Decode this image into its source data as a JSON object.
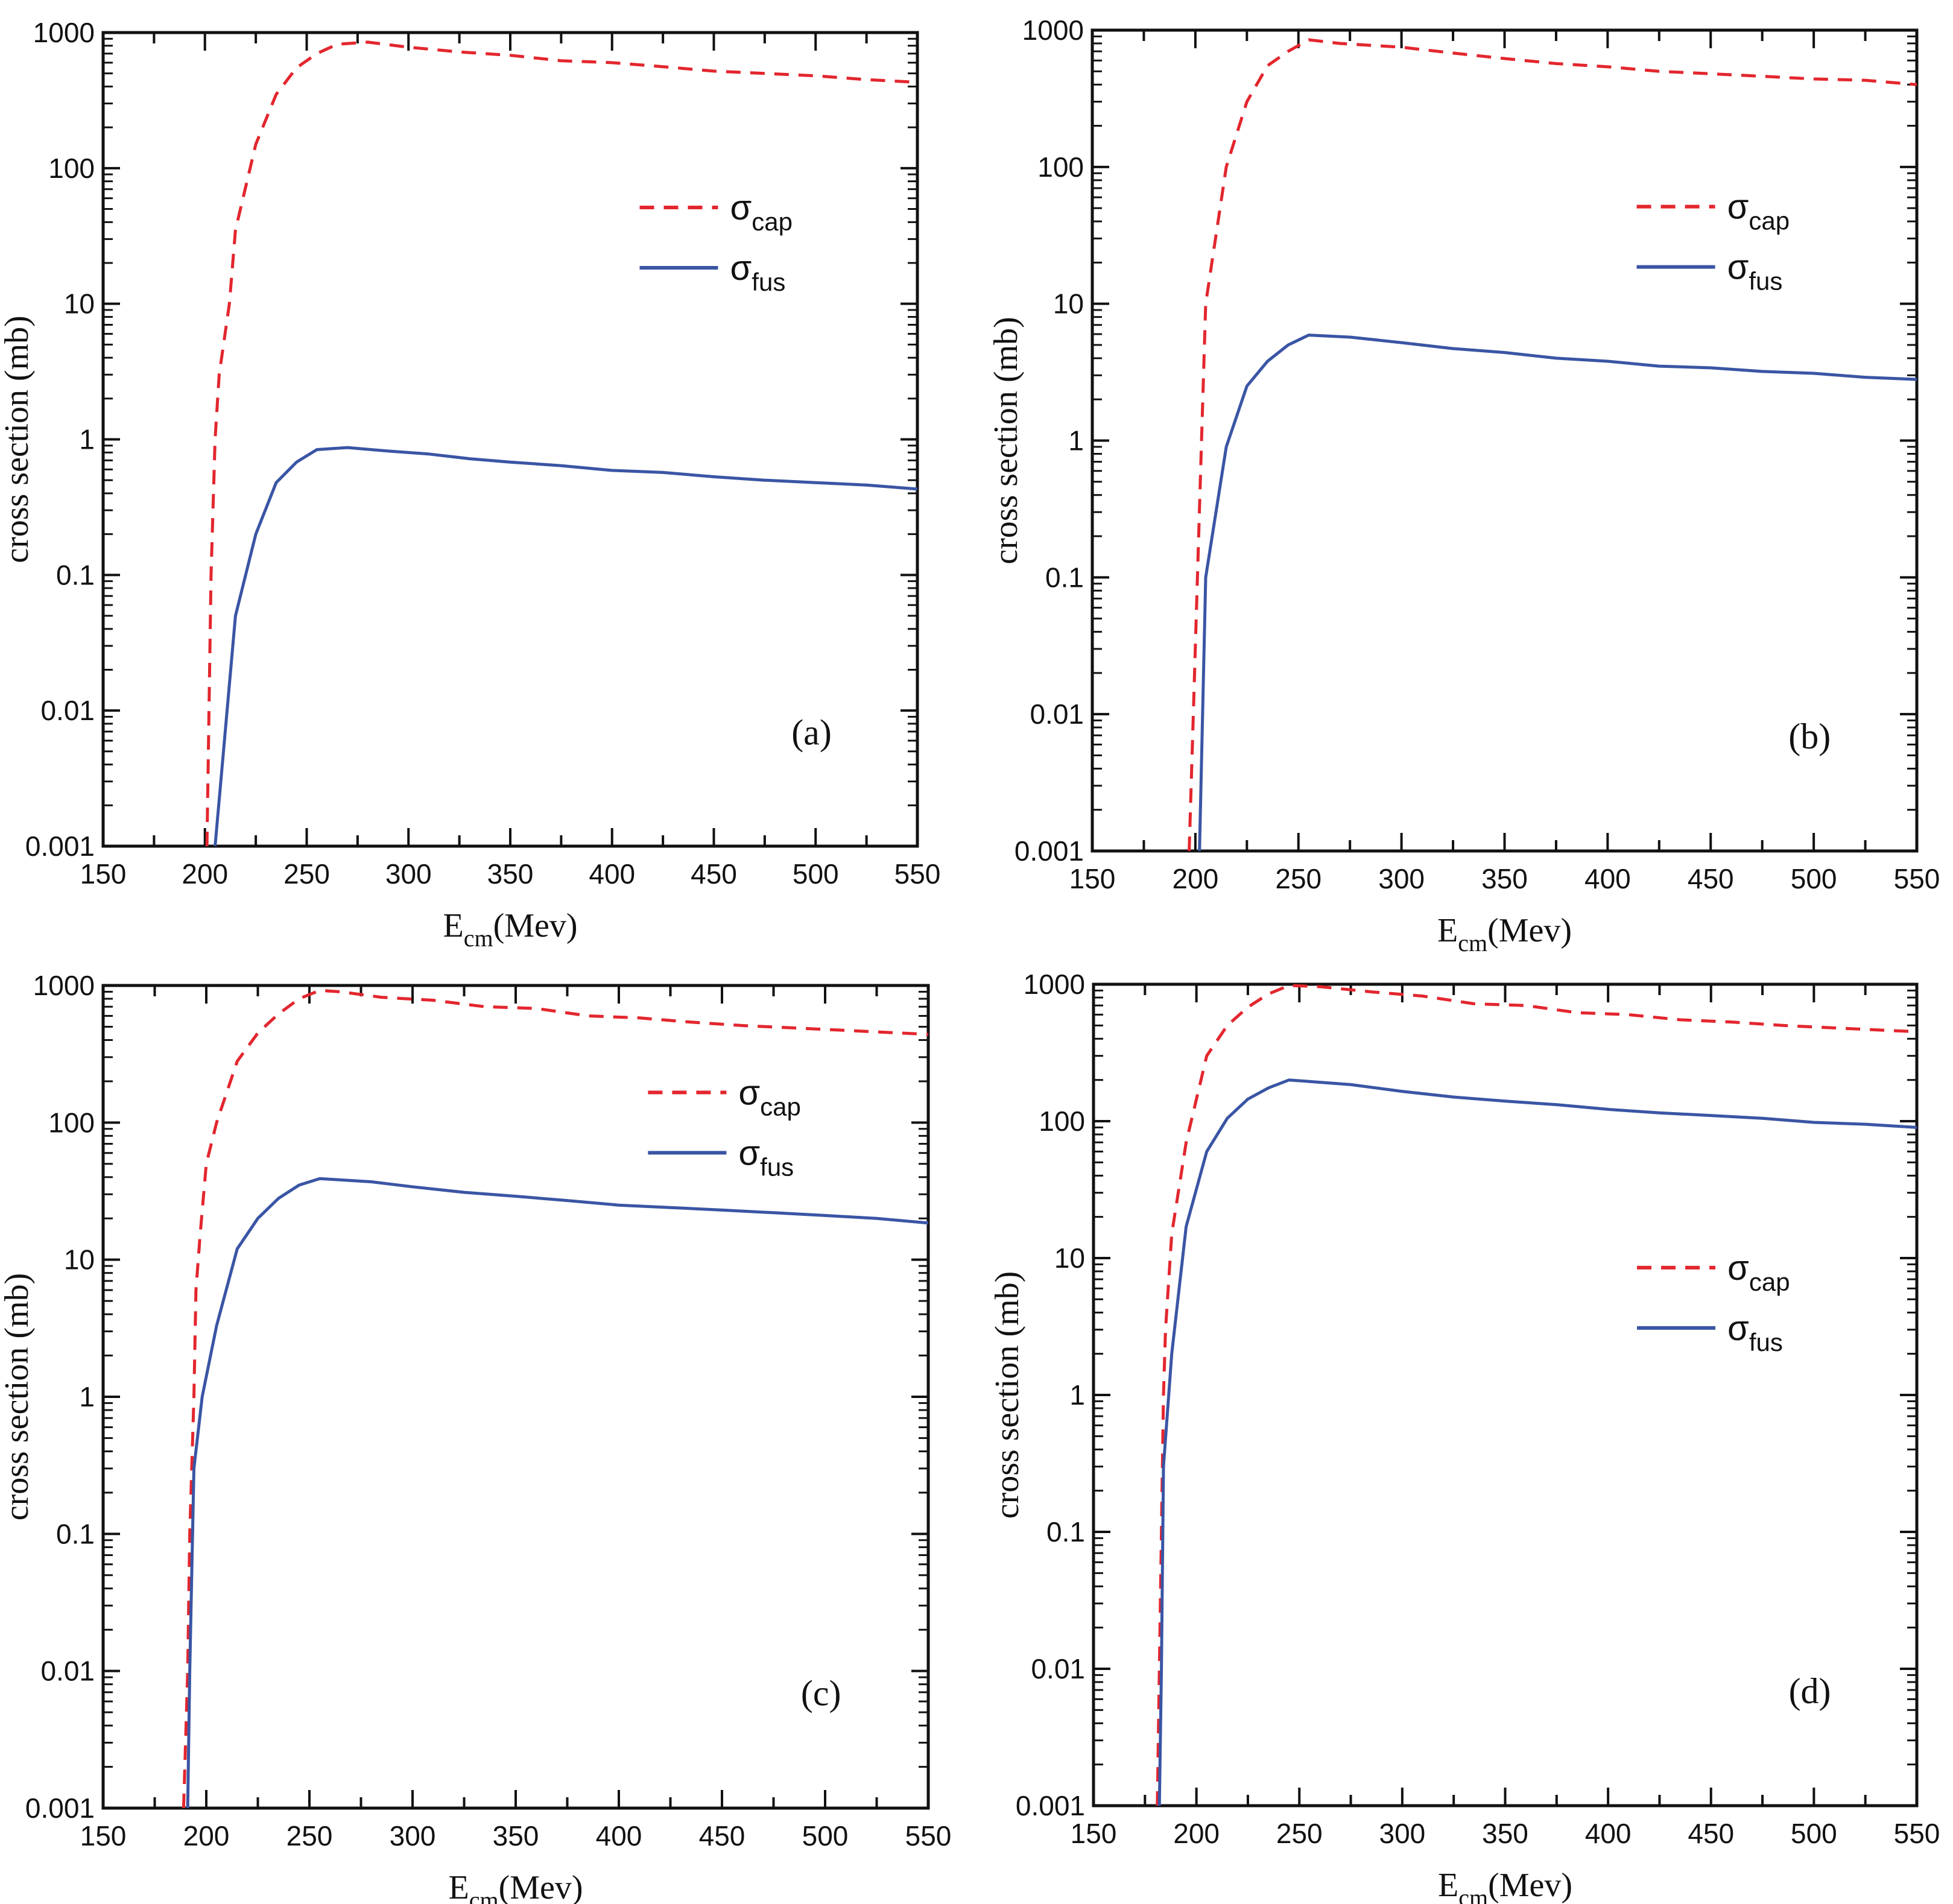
{
  "figure": {
    "panels_count": 4
  },
  "chart_data": [
    {
      "type": "line",
      "panel_label": "(a)",
      "xlabel_main": "E",
      "xlabel_sub": "cm",
      "xlabel_unit": "(Mev)",
      "ylabel": "cross section (mb)",
      "xlim": [
        150,
        550
      ],
      "ylim": [
        0.001,
        1000
      ],
      "yscale": "log",
      "xticks": [
        "150",
        "200",
        "250",
        "300",
        "350",
        "400",
        "450",
        "500",
        "550"
      ],
      "yticks": [
        "0.001",
        "0.01",
        "0.1",
        "1",
        "10",
        "100",
        "1000"
      ],
      "legend_position": "upper-right",
      "series": [
        {
          "name": "σ",
          "name_sub": "cap",
          "style": "dashed",
          "color": "#e3262e",
          "x": [
            201,
            202,
            203,
            205,
            207,
            212,
            215,
            225,
            235,
            245,
            255,
            265,
            280,
            300,
            325,
            350,
            375,
            400,
            425,
            450,
            475,
            500,
            525,
            550
          ],
          "y": [
            0.001,
            0.01,
            0.1,
            1,
            3,
            10,
            35,
            150,
            350,
            550,
            700,
            820,
            850,
            780,
            720,
            680,
            620,
            600,
            560,
            520,
            500,
            480,
            450,
            430
          ]
        },
        {
          "name": "σ",
          "name_sub": "fus",
          "style": "solid",
          "color": "#3a55a4",
          "x": [
            205,
            215,
            225,
            235,
            245,
            255,
            270,
            290,
            310,
            330,
            350,
            375,
            400,
            425,
            450,
            475,
            500,
            525,
            550
          ],
          "y": [
            0.001,
            0.05,
            0.2,
            0.48,
            0.68,
            0.84,
            0.87,
            0.82,
            0.78,
            0.72,
            0.68,
            0.64,
            0.59,
            0.57,
            0.53,
            0.5,
            0.48,
            0.46,
            0.43
          ]
        }
      ]
    },
    {
      "type": "line",
      "panel_label": "(b)",
      "xlabel_main": "E",
      "xlabel_sub": "cm",
      "xlabel_unit": "(Mev)",
      "ylabel": "cross section (mb)",
      "xlim": [
        150,
        550
      ],
      "ylim": [
        0.001,
        1000
      ],
      "yscale": "log",
      "xticks": [
        "150",
        "200",
        "250",
        "300",
        "350",
        "400",
        "450",
        "500",
        "550"
      ],
      "yticks": [
        "0.001",
        "0.01",
        "0.1",
        "1",
        "10",
        "100",
        "1000"
      ],
      "legend_position": "upper-right",
      "series": [
        {
          "name": "σ",
          "name_sub": "cap",
          "style": "dashed",
          "color": "#e3262e",
          "x": [
            197,
            199,
            201,
            203,
            205,
            215,
            225,
            235,
            245,
            255,
            270,
            300,
            325,
            350,
            375,
            400,
            425,
            450,
            475,
            500,
            525,
            550
          ],
          "y": [
            0.001,
            0.01,
            0.1,
            1,
            10,
            100,
            300,
            550,
            700,
            850,
            800,
            750,
            680,
            620,
            570,
            540,
            500,
            480,
            460,
            440,
            430,
            400
          ]
        },
        {
          "name": "σ",
          "name_sub": "fus",
          "style": "solid",
          "color": "#3a55a4",
          "x": [
            202,
            205,
            215,
            225,
            235,
            245,
            255,
            275,
            300,
            325,
            350,
            375,
            400,
            425,
            450,
            475,
            500,
            525,
            550
          ],
          "y": [
            0.001,
            0.1,
            0.9,
            2.5,
            3.8,
            5,
            5.9,
            5.7,
            5.2,
            4.7,
            4.4,
            4.0,
            3.8,
            3.5,
            3.4,
            3.2,
            3.1,
            2.9,
            2.8
          ]
        }
      ]
    },
    {
      "type": "line",
      "panel_label": "(c)",
      "xlabel_main": "E",
      "xlabel_sub": "cm",
      "xlabel_unit": "(Mev)",
      "ylabel": "cross section (mb)",
      "xlim": [
        150,
        550
      ],
      "ylim": [
        0.001,
        1000
      ],
      "yscale": "log",
      "xticks": [
        "150",
        "200",
        "250",
        "300",
        "350",
        "400",
        "450",
        "500",
        "550"
      ],
      "yticks": [
        "0.001",
        "0.01",
        "0.1",
        "1",
        "10",
        "100",
        "1000"
      ],
      "legend_position": "upper-right",
      "series": [
        {
          "name": "σ",
          "name_sub": "cap",
          "style": "dashed",
          "color": "#e3262e",
          "x": [
            189,
            191,
            192,
            194,
            195,
            197,
            200,
            205,
            215,
            225,
            235,
            245,
            255,
            265,
            285,
            310,
            335,
            360,
            385,
            410,
            435,
            460,
            485,
            510,
            550
          ],
          "y": [
            0.001,
            0.01,
            0.1,
            1,
            6,
            15,
            50,
            100,
            280,
            450,
            620,
            800,
            920,
            900,
            820,
            780,
            700,
            680,
            600,
            580,
            540,
            510,
            490,
            470,
            440
          ]
        },
        {
          "name": "σ",
          "name_sub": "fus",
          "style": "solid",
          "color": "#3a55a4",
          "x": [
            191,
            192,
            194,
            198,
            205,
            215,
            225,
            235,
            245,
            255,
            280,
            300,
            325,
            350,
            375,
            400,
            425,
            450,
            475,
            500,
            525,
            550
          ],
          "y": [
            0.001,
            0.01,
            0.3,
            1,
            3.3,
            12,
            20,
            28,
            35,
            39,
            37,
            34,
            31,
            29,
            27,
            25,
            24,
            23,
            22,
            21,
            20,
            18.5
          ]
        }
      ]
    },
    {
      "type": "line",
      "panel_label": "(d)",
      "xlabel_main": "E",
      "xlabel_sub": "cm",
      "xlabel_unit": "(Mev)",
      "ylabel": "cross section (mb)",
      "xlim": [
        150,
        550
      ],
      "ylim": [
        0.001,
        1000
      ],
      "yscale": "log",
      "xticks": [
        "150",
        "200",
        "250",
        "300",
        "350",
        "400",
        "450",
        "500",
        "550"
      ],
      "yticks": [
        "0.001",
        "0.01",
        "0.1",
        "1",
        "10",
        "100",
        "1000"
      ],
      "legend_position": "center-right",
      "series": [
        {
          "name": "σ",
          "name_sub": "cap",
          "style": "dashed",
          "color": "#e3262e",
          "x": [
            181,
            182,
            183,
            184,
            185,
            188,
            195,
            205,
            215,
            225,
            235,
            245,
            260,
            285,
            310,
            335,
            360,
            385,
            410,
            435,
            460,
            485,
            510,
            550
          ],
          "y": [
            0.001,
            0.01,
            0.1,
            1,
            3,
            15,
            70,
            300,
            500,
            680,
            850,
            980,
            960,
            880,
            820,
            720,
            700,
            620,
            600,
            550,
            530,
            500,
            480,
            450
          ]
        },
        {
          "name": "σ",
          "name_sub": "fus",
          "style": "solid",
          "color": "#3a55a4",
          "x": [
            182,
            183,
            184,
            188,
            195,
            205,
            215,
            225,
            235,
            245,
            255,
            275,
            300,
            325,
            350,
            375,
            400,
            425,
            450,
            475,
            500,
            525,
            550
          ],
          "y": [
            0.001,
            0.01,
            0.3,
            2,
            17,
            60,
            105,
            145,
            175,
            200,
            195,
            185,
            165,
            150,
            140,
            132,
            122,
            115,
            110,
            105,
            98,
            95,
            90
          ]
        }
      ]
    }
  ]
}
